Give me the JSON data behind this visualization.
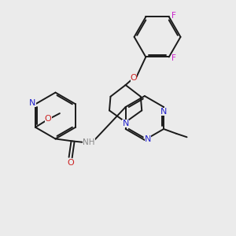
{
  "bg_color": "#ebebeb",
  "bond_color": "#1a1a1a",
  "n_color": "#2222cc",
  "o_color": "#cc2222",
  "f_color": "#cc22cc",
  "h_color": "#888888",
  "figsize": [
    3.0,
    3.0
  ],
  "dpi": 100,
  "xlim": [
    0,
    10
  ],
  "ylim": [
    0,
    10
  ]
}
